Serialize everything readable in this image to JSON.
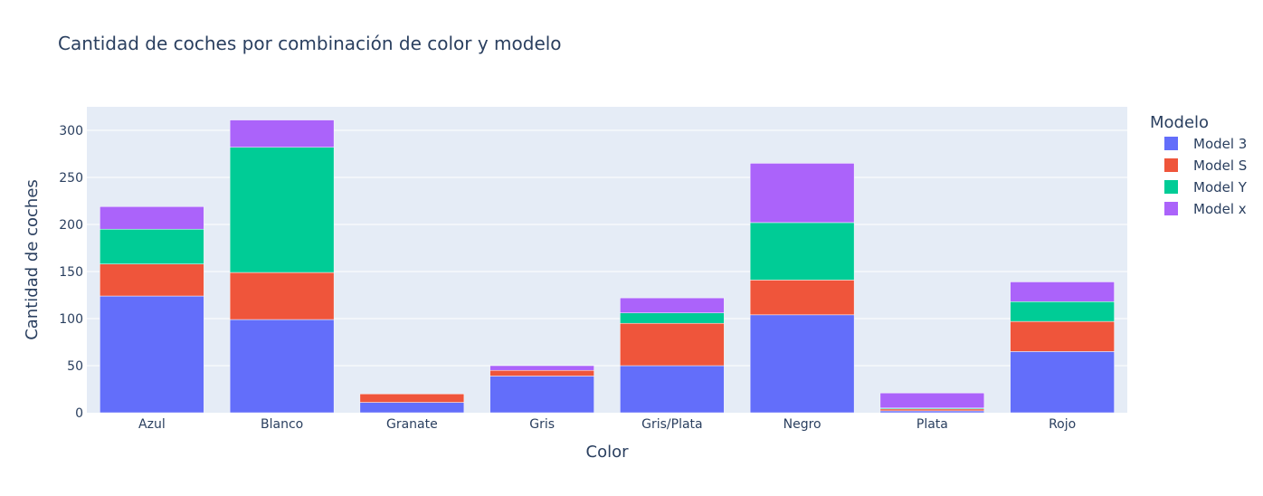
{
  "chart_data": {
    "type": "bar",
    "barmode": "stack",
    "title": "Cantidad de coches por combinación de color y modelo",
    "xlabel": "Color",
    "ylabel": "Cantidad de coches",
    "ylim": [
      0,
      325
    ],
    "yticks": [
      0,
      50,
      100,
      150,
      200,
      250,
      300
    ],
    "grid": true,
    "legend_title": "Modelo",
    "legend_position": "right",
    "categories": [
      "Azul",
      "Blanco",
      "Granate",
      "Gris",
      "Gris/Plata",
      "Negro",
      "Plata",
      "Rojo"
    ],
    "series": [
      {
        "name": "Model 3",
        "color": "#636efa",
        "values": [
          124,
          99,
          11,
          39,
          50,
          104,
          2,
          65
        ]
      },
      {
        "name": "Model S",
        "color": "#ef553b",
        "values": [
          34,
          50,
          9,
          6,
          45,
          37,
          2,
          32
        ]
      },
      {
        "name": "Model Y",
        "color": "#00cc96",
        "values": [
          37,
          133,
          0,
          0,
          11,
          61,
          1,
          21
        ]
      },
      {
        "name": "Model x",
        "color": "#ab63fa",
        "values": [
          24,
          29,
          0,
          5,
          16,
          63,
          16,
          21
        ]
      }
    ],
    "plot_background": "#e5ecf6"
  }
}
